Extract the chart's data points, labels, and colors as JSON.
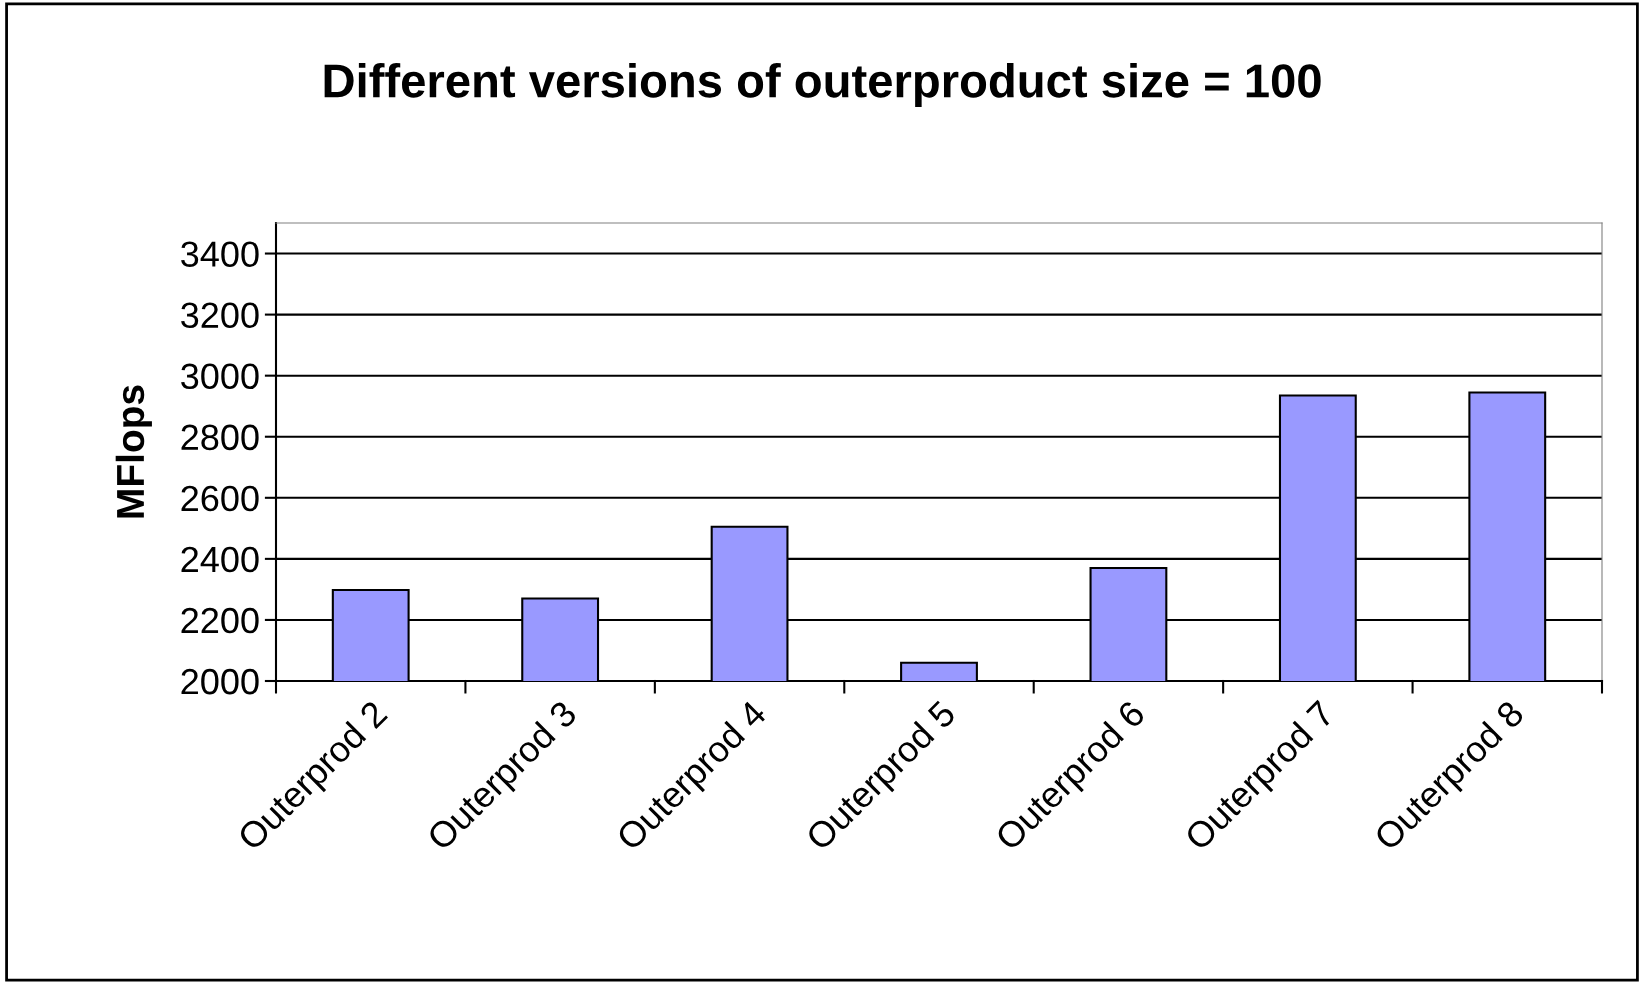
{
  "chart_data": {
    "type": "bar",
    "title": "Different versions of outerproduct size = 100",
    "ylabel": "MFlops",
    "categories": [
      "Outerprod 2",
      "Outerprod 3",
      "Outerprod 4",
      "Outerprod 5",
      "Outerprod 6",
      "Outerprod 7",
      "Outerprod 8"
    ],
    "values": [
      2298,
      2270,
      2505,
      2060,
      2370,
      2935,
      2945
    ],
    "color": "#9999ff",
    "ylim": [
      2000,
      3500
    ],
    "yticks": [
      2000,
      2200,
      2400,
      2600,
      2800,
      3000,
      3200,
      3400
    ],
    "grid": "y"
  }
}
